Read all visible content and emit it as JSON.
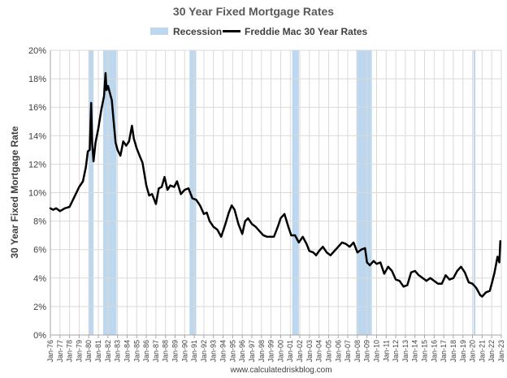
{
  "chart_data": {
    "type": "line",
    "title": "30 Year Fixed Mortgage Rates",
    "ylabel": "30 Year Fixed Mortgage Rate",
    "xlabel": "",
    "source": "www.calculatedriskblog.com",
    "ylim": [
      0,
      20
    ],
    "xlim": [
      1976.0,
      2023.0
    ],
    "grid": true,
    "legend_position": "top",
    "y_ticks": [
      "0%",
      "2%",
      "4%",
      "6%",
      "8%",
      "10%",
      "12%",
      "14%",
      "16%",
      "18%",
      "20%"
    ],
    "x_ticks": [
      "Jan-76",
      "Jan-77",
      "Jan-78",
      "Jan-79",
      "Jan-80",
      "Jan-81",
      "Jan-82",
      "Jan-83",
      "Jan-84",
      "Jan-85",
      "Jan-86",
      "Jan-87",
      "Jan-88",
      "Jan-89",
      "Jan-90",
      "Jan-91",
      "Jan-92",
      "Jan-93",
      "Jan-94",
      "Jan-95",
      "Jan-96",
      "Jan-97",
      "Jan-98",
      "Jan-99",
      "Jan-00",
      "Jan-01",
      "Jan-02",
      "Jan-03",
      "Jan-04",
      "Jan-05",
      "Jan-06",
      "Jan-07",
      "Jan-08",
      "Jan-09",
      "Jan-10",
      "Jan-11",
      "Jan-12",
      "Jan-13",
      "Jan-14",
      "Jan-15",
      "Jan-16",
      "Jan-17",
      "Jan-18",
      "Jan-19",
      "Jan-20",
      "Jan-21",
      "Jan-22",
      "Jan-23"
    ],
    "series": [
      {
        "name": "Freddie Mac 30 Year Rates",
        "color": "#000000",
        "x": [
          1976.0,
          1976.3,
          1976.6,
          1977.0,
          1977.5,
          1978.0,
          1978.5,
          1979.0,
          1979.4,
          1979.7,
          1979.9,
          1980.1,
          1980.25,
          1980.35,
          1980.5,
          1980.7,
          1981.0,
          1981.3,
          1981.6,
          1981.75,
          1981.85,
          1982.0,
          1982.2,
          1982.4,
          1982.6,
          1982.8,
          1983.0,
          1983.3,
          1983.6,
          1983.9,
          1984.2,
          1984.5,
          1984.7,
          1985.0,
          1985.3,
          1985.6,
          1986.0,
          1986.3,
          1986.6,
          1987.0,
          1987.3,
          1987.6,
          1987.9,
          1988.2,
          1988.5,
          1988.9,
          1989.2,
          1989.6,
          1990.0,
          1990.4,
          1990.8,
          1991.2,
          1991.6,
          1992.0,
          1992.3,
          1992.6,
          1993.0,
          1993.4,
          1993.8,
          1994.2,
          1994.6,
          1994.9,
          1995.2,
          1995.6,
          1996.0,
          1996.3,
          1996.6,
          1997.0,
          1997.4,
          1997.8,
          1998.2,
          1998.6,
          1998.9,
          1999.3,
          1999.7,
          2000.0,
          2000.4,
          2000.8,
          2001.1,
          2001.5,
          2001.9,
          2002.3,
          2002.7,
          2003.0,
          2003.4,
          2003.7,
          2004.0,
          2004.4,
          2004.8,
          2005.2,
          2005.6,
          2006.0,
          2006.4,
          2006.8,
          2007.2,
          2007.6,
          2008.0,
          2008.4,
          2008.8,
          2009.0,
          2009.3,
          2009.7,
          2010.0,
          2010.4,
          2010.8,
          2011.2,
          2011.6,
          2012.0,
          2012.4,
          2012.8,
          2013.2,
          2013.6,
          2014.0,
          2014.4,
          2014.8,
          2015.2,
          2015.6,
          2016.0,
          2016.4,
          2016.8,
          2017.2,
          2017.6,
          2018.0,
          2018.4,
          2018.8,
          2019.2,
          2019.6,
          2020.0,
          2020.4,
          2020.8,
          2021.0,
          2021.4,
          2021.8,
          2022.0,
          2022.3,
          2022.6,
          2022.8,
          2022.9
        ],
        "y": [
          8.9,
          8.8,
          8.9,
          8.7,
          8.9,
          9.0,
          9.7,
          10.4,
          10.8,
          11.8,
          12.9,
          13.0,
          16.3,
          13.5,
          12.2,
          13.5,
          14.5,
          15.8,
          16.8,
          18.4,
          17.2,
          17.5,
          17.0,
          16.5,
          15.0,
          13.5,
          13.0,
          12.6,
          13.6,
          13.3,
          13.6,
          14.7,
          13.8,
          13.1,
          12.6,
          12.1,
          10.5,
          9.8,
          9.9,
          9.2,
          10.3,
          10.4,
          11.1,
          10.2,
          10.5,
          10.4,
          10.8,
          9.9,
          10.2,
          10.3,
          9.6,
          9.5,
          9.1,
          8.5,
          8.6,
          8.0,
          7.6,
          7.4,
          6.9,
          7.7,
          8.6,
          9.1,
          8.8,
          7.8,
          7.1,
          8.0,
          8.2,
          7.8,
          7.6,
          7.3,
          7.0,
          6.9,
          6.9,
          6.9,
          7.6,
          8.2,
          8.5,
          7.6,
          7.0,
          7.0,
          6.5,
          6.9,
          6.4,
          5.9,
          5.8,
          5.6,
          5.9,
          6.2,
          5.8,
          5.6,
          5.9,
          6.2,
          6.5,
          6.4,
          6.2,
          6.5,
          5.8,
          6.0,
          6.1,
          5.1,
          4.9,
          5.2,
          5.0,
          5.1,
          4.3,
          4.8,
          4.5,
          3.9,
          3.8,
          3.4,
          3.5,
          4.4,
          4.5,
          4.2,
          4.0,
          3.8,
          4.0,
          3.8,
          3.6,
          3.6,
          4.2,
          3.9,
          4.0,
          4.5,
          4.8,
          4.4,
          3.7,
          3.6,
          3.3,
          2.8,
          2.7,
          3.0,
          3.1,
          3.6,
          4.4,
          5.5,
          5.1,
          6.6
        ]
      }
    ],
    "shaded_regions": {
      "name": "Recession",
      "color": "#bdd7ee",
      "ranges": [
        [
          1980.0,
          1980.5
        ],
        [
          1981.5,
          1982.9
        ],
        [
          1990.5,
          1991.2
        ],
        [
          2001.2,
          2001.9
        ],
        [
          2007.9,
          2009.5
        ],
        [
          2020.1,
          2020.3
        ]
      ]
    }
  },
  "legend": {
    "recession_label": "Recession",
    "series_label": "Freddie Mac 30 Year Rates"
  }
}
